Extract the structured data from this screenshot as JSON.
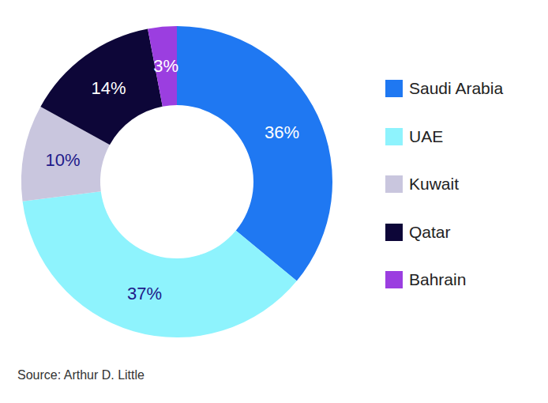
{
  "chart_data": {
    "type": "pie",
    "categories": [
      "Saudi Arabia",
      "UAE",
      "Kuwait",
      "Qatar",
      "Bahrain"
    ],
    "values": [
      36,
      37,
      10,
      14,
      3
    ],
    "value_labels": [
      "36%",
      "37%",
      "10%",
      "14%",
      "3%"
    ],
    "colors": [
      "#1f78f2",
      "#8ef3fd",
      "#c9c6de",
      "#0d0638",
      "#9b3ee0"
    ],
    "data_labels": true,
    "legend": "right",
    "source": "Source: Arthur D. Little"
  }
}
